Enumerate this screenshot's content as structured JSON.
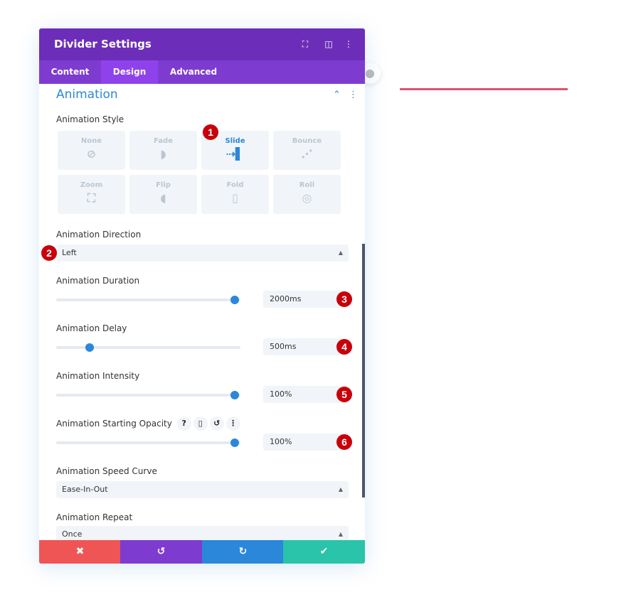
{
  "panel": {
    "title": "Divider Settings",
    "header_icons": [
      "expand-icon",
      "split-view-icon",
      "more-vertical-icon"
    ],
    "tabs": [
      {
        "label": "Content",
        "active": false
      },
      {
        "label": "Design",
        "active": true
      },
      {
        "label": "Advanced",
        "active": false
      }
    ]
  },
  "section": {
    "title": "Animation"
  },
  "animation_style": {
    "label": "Animation Style",
    "selected": "Slide",
    "options": [
      {
        "label": "None",
        "icon": "⊘"
      },
      {
        "label": "Fade",
        "icon": "◗"
      },
      {
        "label": "Slide",
        "icon": "⇢▌"
      },
      {
        "label": "Bounce",
        "icon": "⋰"
      },
      {
        "label": "Zoom",
        "icon": "⛶"
      },
      {
        "label": "Flip",
        "icon": "◖"
      },
      {
        "label": "Fold",
        "icon": "▯"
      },
      {
        "label": "Roll",
        "icon": "◎"
      }
    ]
  },
  "animation_direction": {
    "label": "Animation Direction",
    "value": "Left"
  },
  "animation_duration": {
    "label": "Animation Duration",
    "value": "2000ms",
    "level": 0.97
  },
  "animation_delay": {
    "label": "Animation Delay",
    "value": "500ms",
    "level": 0.18
  },
  "animation_intensity": {
    "label": "Animation Intensity",
    "value": "100%",
    "level": 0.97
  },
  "animation_opacity": {
    "label": "Animation Starting Opacity",
    "value": "100%",
    "level": 0.97,
    "tools": [
      "?",
      "▯",
      "↺",
      "⋮"
    ]
  },
  "animation_speed_curve": {
    "label": "Animation Speed Curve",
    "value": "Ease-In-Out"
  },
  "animation_repeat": {
    "label": "Animation Repeat",
    "value": "Once"
  },
  "badges": [
    "1",
    "2",
    "3",
    "4",
    "5",
    "6"
  ],
  "footer": {
    "cancel": "✖",
    "undo": "↺",
    "redo": "↻",
    "save": "✔"
  },
  "colors": {
    "header": "#6c2eb9",
    "tabs": "#7e3bd0",
    "accent": "#2b87da",
    "cancel": "#ef5555",
    "undo": "#7e3bd0",
    "redo": "#2b87da",
    "save": "#29c4a9",
    "divider_line": "#d9546e",
    "badge": "#c8000b"
  }
}
